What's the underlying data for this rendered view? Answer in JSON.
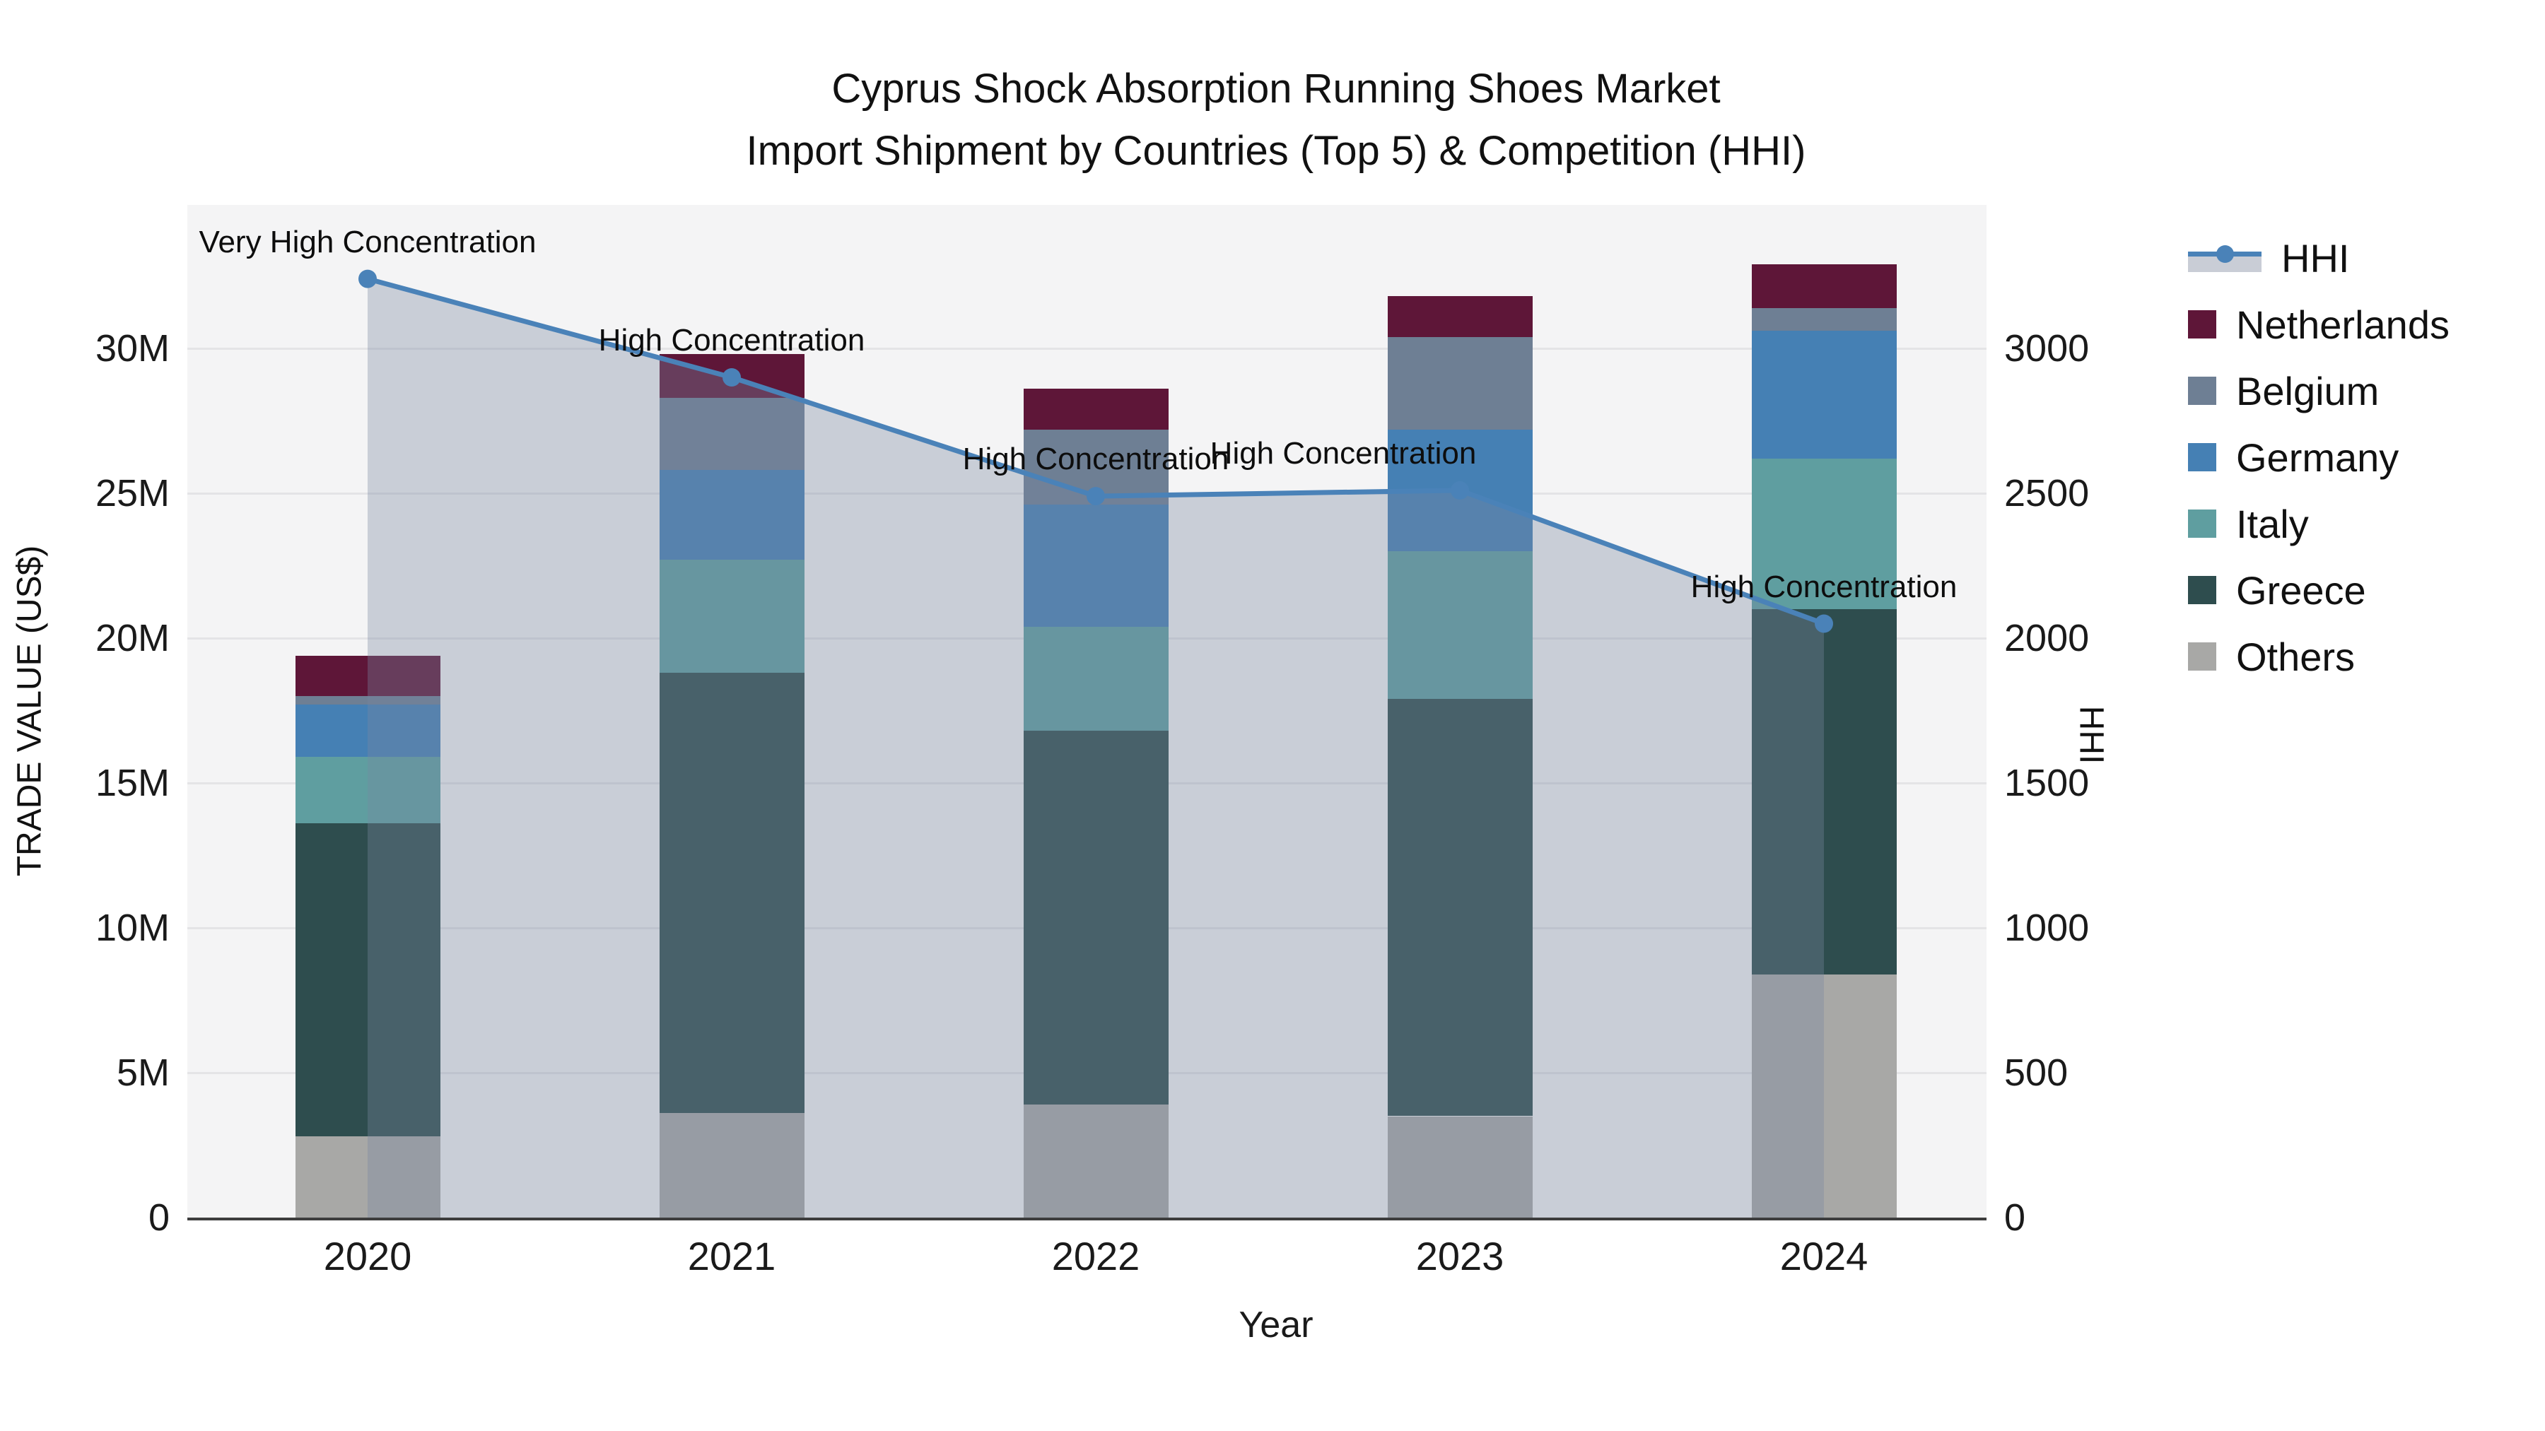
{
  "title": {
    "line1": "Cyprus Shock Absorption Running Shoes Market",
    "line2": "Import Shipment by Countries (Top 5) & Competition (HHI)"
  },
  "axes": {
    "x_title": "Year",
    "y_left_title": "TRADE VALUE (US$)",
    "y_right_title": "HHI",
    "y_left_ticks": [
      {
        "value": 0,
        "label": "0"
      },
      {
        "value": 5,
        "label": "5M"
      },
      {
        "value": 10,
        "label": "10M"
      },
      {
        "value": 15,
        "label": "15M"
      },
      {
        "value": 20,
        "label": "20M"
      },
      {
        "value": 25,
        "label": "25M"
      },
      {
        "value": 30,
        "label": "30M"
      }
    ],
    "y_right_ticks": [
      {
        "value": 0,
        "label": "0"
      },
      {
        "value": 500,
        "label": "500"
      },
      {
        "value": 1000,
        "label": "1000"
      },
      {
        "value": 1500,
        "label": "1500"
      },
      {
        "value": 2000,
        "label": "2000"
      },
      {
        "value": 2500,
        "label": "2500"
      },
      {
        "value": 3000,
        "label": "3000"
      }
    ]
  },
  "colors": {
    "hhi_line": "#4a82b8",
    "hhi_fill": "rgba(120,135,160,0.35)",
    "netherlands": "#5e1638",
    "belgium": "#6e7f94",
    "germany": "#4580b4",
    "italy": "#5f9ea0",
    "greece": "#2e4d4e",
    "others": "#a8a8a6",
    "plot_bg": "#f4f4f5",
    "grid": "#e4e4e6"
  },
  "legend": {
    "items": [
      {
        "key": "hhi",
        "label": "HHI",
        "type": "line"
      },
      {
        "key": "netherlands",
        "label": "Netherlands",
        "type": "swatch"
      },
      {
        "key": "belgium",
        "label": "Belgium",
        "type": "swatch"
      },
      {
        "key": "germany",
        "label": "Germany",
        "type": "swatch"
      },
      {
        "key": "italy",
        "label": "Italy",
        "type": "swatch"
      },
      {
        "key": "greece",
        "label": "Greece",
        "type": "swatch"
      },
      {
        "key": "others",
        "label": "Others",
        "type": "swatch"
      }
    ]
  },
  "chart_data": {
    "type": "bar",
    "subtype": "stacked-bar-with-line-area",
    "title": "Cyprus Shock Absorption Running Shoes Market — Import Shipment by Countries (Top 5) & Competition (HHI)",
    "xlabel": "Year",
    "ylabel_left": "TRADE VALUE (US$)",
    "ylabel_right": "HHI",
    "categories": [
      "2020",
      "2021",
      "2022",
      "2023",
      "2024"
    ],
    "stack_order_bottom_to_top": [
      "others",
      "greece",
      "italy",
      "germany",
      "belgium",
      "netherlands"
    ],
    "series": [
      {
        "key": "others",
        "name": "Others",
        "unit": "M US$",
        "values": [
          2.8,
          3.6,
          3.9,
          3.5,
          8.4
        ]
      },
      {
        "key": "greece",
        "name": "Greece",
        "unit": "M US$",
        "values": [
          10.8,
          15.2,
          12.9,
          14.4,
          12.6
        ]
      },
      {
        "key": "italy",
        "name": "Italy",
        "unit": "M US$",
        "values": [
          2.3,
          3.9,
          3.6,
          5.1,
          5.2
        ]
      },
      {
        "key": "germany",
        "name": "Germany",
        "unit": "M US$",
        "values": [
          1.8,
          3.1,
          4.2,
          4.2,
          4.4
        ]
      },
      {
        "key": "belgium",
        "name": "Belgium",
        "unit": "M US$",
        "values": [
          0.3,
          2.5,
          2.6,
          3.2,
          0.8
        ]
      },
      {
        "key": "netherlands",
        "name": "Netherlands",
        "unit": "M US$",
        "values": [
          1.4,
          1.5,
          1.4,
          1.4,
          1.5
        ]
      }
    ],
    "totals_m_usd": [
      19.4,
      29.8,
      28.6,
      31.8,
      32.9
    ],
    "line_series": {
      "key": "hhi",
      "name": "HHI",
      "values": [
        3240,
        2900,
        2490,
        2510,
        2050
      ],
      "fill": "tozeroy"
    },
    "annotations": [
      {
        "year": "2020",
        "text": "Very High Concentration"
      },
      {
        "year": "2021",
        "text": "High Concentration"
      },
      {
        "year": "2022",
        "text": "High Concentration"
      },
      {
        "year": "2023",
        "text": "High Concentration"
      },
      {
        "year": "2024",
        "text": "High Concentration"
      }
    ],
    "ylim_left_m": [
      0,
      35
    ],
    "ylim_right_hhi": [
      0,
      3500
    ],
    "grid": true,
    "legend_position": "right"
  }
}
